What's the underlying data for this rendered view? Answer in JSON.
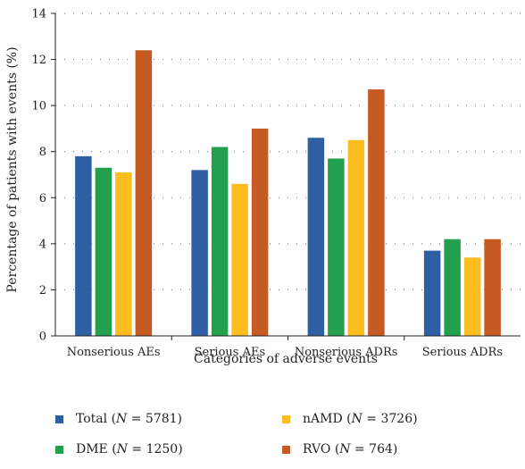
{
  "chart_data": {
    "type": "bar",
    "categories": [
      "Nonserious AEs",
      "Serious AEs",
      "Nonserious ADRs",
      "Serious ADRs"
    ],
    "series": [
      {
        "name": "Total (N = 5781)",
        "prefix": "Total (",
        "n_value": " = 5781)",
        "color": "#2e5fa3",
        "values": [
          7.8,
          7.2,
          8.6,
          3.7
        ]
      },
      {
        "name": "DME (N = 1250)",
        "prefix": "DME (",
        "n_value": " = 1250)",
        "color": "#23a04d",
        "values": [
          7.3,
          8.2,
          7.7,
          4.2
        ]
      },
      {
        "name": "nAMD (N = 3726)",
        "prefix": "nAMD (",
        "n_value": " = 3726)",
        "color": "#fdbd1e",
        "values": [
          7.1,
          6.6,
          8.5,
          3.4
        ]
      },
      {
        "name": "RVO (N = 764)",
        "prefix": "RVO (",
        "n_value": " = 764)",
        "color": "#c55a22",
        "values": [
          12.4,
          9.0,
          10.7,
          4.2
        ]
      }
    ],
    "xlabel": "Categories of adverse events",
    "ylabel": "Percentage of patients with events (%)",
    "ylim": [
      0,
      14
    ],
    "yticks": [
      0,
      2,
      4,
      6,
      8,
      10,
      12,
      14
    ],
    "grid": "horizontal dotted",
    "legend_position": "bottom",
    "legend_n_symbol": "N"
  }
}
